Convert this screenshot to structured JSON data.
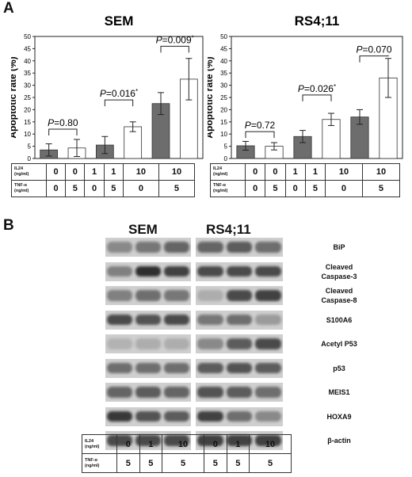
{
  "panel_a_label": "A",
  "panel_b_label": "B",
  "chart_data": [
    {
      "type": "bar",
      "title": "SEM",
      "ylabel": "Apoptotic rate (%)",
      "ylim": [
        0,
        50
      ],
      "yticks": [
        "0",
        "5",
        "10",
        "15",
        "20",
        "25",
        "30",
        "35",
        "40",
        "45",
        "50"
      ],
      "values": [
        3.5,
        4.3,
        5.5,
        13,
        22.5,
        32.5
      ],
      "errors": [
        2.5,
        3.5,
        3.5,
        2,
        4.5,
        8.5
      ],
      "bar_colors": [
        "#6d6d6d",
        "#ffffff",
        "#6d6d6d",
        "#ffffff",
        "#6d6d6d",
        "#ffffff"
      ],
      "pvalues": [
        {
          "text": "=0.80",
          "pairs": [
            0,
            1
          ],
          "top": 12
        },
        {
          "text": "=0.016",
          "star": "*",
          "pairs": [
            2,
            3
          ],
          "top": 24
        },
        {
          "text": "=0.009",
          "star": "*",
          "pairs": [
            4,
            5
          ],
          "top": 46
        }
      ]
    },
    {
      "type": "bar",
      "title": "RS4;11",
      "ylabel": "Apoptotic rate (%)",
      "ylim": [
        0,
        50
      ],
      "yticks": [
        "0",
        "5",
        "10",
        "15",
        "20",
        "25",
        "30",
        "35",
        "40",
        "45",
        "50"
      ],
      "values": [
        5.2,
        5,
        9,
        16,
        17,
        33
      ],
      "errors": [
        1.8,
        1.5,
        2.5,
        2.5,
        3,
        8
      ],
      "bar_colors": [
        "#6d6d6d",
        "#ffffff",
        "#6d6d6d",
        "#ffffff",
        "#6d6d6d",
        "#ffffff"
      ],
      "pvalues": [
        {
          "text": "=0.72",
          "pairs": [
            0,
            1
          ],
          "top": 11
        },
        {
          "text": "=0.026",
          "star": "*",
          "pairs": [
            2,
            3
          ],
          "top": 26
        },
        {
          "text": "=0.070",
          "pairs": [
            4,
            5
          ],
          "top": 42
        }
      ]
    }
  ],
  "p_letter": "P",
  "table_a": {
    "il24_label": "IL24",
    "tnf_label": "TNF-α",
    "unit": "(ng/ml)",
    "il24": [
      "0",
      "0",
      "1",
      "1",
      "10",
      "10"
    ],
    "tnf": [
      "0",
      "5",
      "0",
      "5",
      "0",
      "5"
    ]
  },
  "blot": {
    "titles": [
      "SEM",
      "RS4;11"
    ],
    "bands": [
      {
        "label": "BiP",
        "sem": [
          0.35,
          0.45,
          0.55
        ],
        "rs": [
          0.55,
          0.6,
          0.5
        ]
      },
      {
        "label": "Cleaved\nCaspase-3",
        "sem": [
          0.4,
          0.85,
          0.75
        ],
        "rs": [
          0.7,
          0.7,
          0.7
        ]
      },
      {
        "label": "Cleaved\nCaspase-8",
        "sem": [
          0.4,
          0.5,
          0.45
        ],
        "rs": [
          0.15,
          0.7,
          0.75
        ]
      },
      {
        "label": "S100A6",
        "sem": [
          0.7,
          0.65,
          0.7
        ],
        "rs": [
          0.45,
          0.5,
          0.25
        ]
      },
      {
        "label": "Acetyl P53",
        "sem": [
          0.12,
          0.15,
          0.15
        ],
        "rs": [
          0.35,
          0.6,
          0.7
        ]
      },
      {
        "label": "p53",
        "sem": [
          0.5,
          0.5,
          0.5
        ],
        "rs": [
          0.6,
          0.65,
          0.6
        ]
      },
      {
        "label": "MEIS1",
        "sem": [
          0.55,
          0.6,
          0.55
        ],
        "rs": [
          0.65,
          0.6,
          0.5
        ]
      },
      {
        "label": "HOXA9",
        "sem": [
          0.8,
          0.65,
          0.6
        ],
        "rs": [
          0.75,
          0.5,
          0.35
        ]
      },
      {
        "label": "β-actin",
        "sem": [
          0.7,
          0.7,
          0.7
        ],
        "rs": [
          0.75,
          0.75,
          0.75
        ]
      }
    ]
  },
  "table_b": {
    "il24_label": "IL24",
    "tnf_label": "TNF-α",
    "unit": "(ng/ml)",
    "il24": [
      "0",
      "1",
      "10",
      "0",
      "1",
      "10"
    ],
    "tnf": [
      "5",
      "5",
      "5",
      "5",
      "5",
      "5"
    ]
  }
}
